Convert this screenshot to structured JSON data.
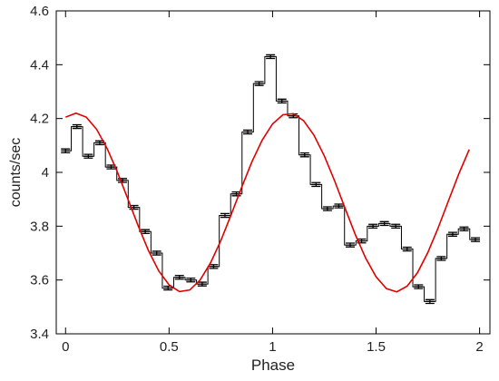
{
  "chart_data": {
    "type": "step",
    "xlabel": "Phase",
    "ylabel": "counts/sec",
    "xlim": [
      -0.045,
      2.05
    ],
    "ylim": [
      3.4,
      4.6
    ],
    "xticks": [
      0,
      0.5,
      1,
      1.5,
      2
    ],
    "yticks": [
      3.4,
      3.6,
      3.8,
      4,
      4.2,
      4.4,
      4.6
    ],
    "series": [
      {
        "type": "step",
        "color": "#000000",
        "x": [
          0,
          0.055,
          0.11,
          0.165,
          0.22,
          0.275,
          0.33,
          0.385,
          0.44,
          0.495,
          0.55,
          0.605,
          0.66,
          0.715,
          0.77,
          0.825,
          0.88,
          0.935,
          0.99,
          1.045,
          1.1,
          1.155,
          1.21,
          1.265,
          1.32,
          1.375,
          1.43,
          1.485,
          1.54,
          1.595,
          1.65,
          1.705,
          1.76,
          1.815,
          1.87,
          1.925,
          1.98
        ],
        "values": [
          4.08,
          4.17,
          4.06,
          4.11,
          4.02,
          3.97,
          3.87,
          3.78,
          3.7,
          3.57,
          3.61,
          3.6,
          3.585,
          3.65,
          3.84,
          3.92,
          4.15,
          4.33,
          4.43,
          4.265,
          4.21,
          4.065,
          3.955,
          3.865,
          3.875,
          3.73,
          3.745,
          3.8,
          3.81,
          3.8,
          3.715,
          3.575,
          3.52,
          3.68,
          3.77,
          3.79,
          3.75
        ],
        "errors": [
          0.007,
          0.007,
          0.007,
          0.007,
          0.007,
          0.007,
          0.007,
          0.007,
          0.007,
          0.007,
          0.007,
          0.007,
          0.007,
          0.007,
          0.007,
          0.007,
          0.007,
          0.007,
          0.007,
          0.007,
          0.007,
          0.007,
          0.007,
          0.007,
          0.007,
          0.007,
          0.007,
          0.007,
          0.007,
          0.007,
          0.007,
          0.007,
          0.007,
          0.007,
          0.007,
          0.007,
          0.007
        ]
      },
      {
        "type": "line",
        "color": "#e00000",
        "x": [
          0,
          0.05,
          0.1,
          0.15,
          0.2,
          0.25,
          0.3,
          0.35,
          0.4,
          0.45,
          0.5,
          0.55,
          0.6,
          0.65,
          0.7,
          0.75,
          0.8,
          0.85,
          0.9,
          0.95,
          1,
          1.05,
          1.1,
          1.15,
          1.2,
          1.25,
          1.3,
          1.35,
          1.4,
          1.45,
          1.5,
          1.55,
          1.6,
          1.65,
          1.7,
          1.75,
          1.8,
          1.85,
          1.9,
          1.95
        ],
        "values": [
          4.205,
          4.22,
          4.205,
          4.16,
          4.09,
          4.002,
          3.903,
          3.803,
          3.71,
          3.634,
          3.582,
          3.557,
          3.563,
          3.6,
          3.663,
          3.746,
          3.843,
          3.943,
          4.039,
          4.12,
          4.18,
          4.214,
          4.218,
          4.192,
          4.138,
          4.061,
          3.968,
          3.867,
          3.768,
          3.681,
          3.612,
          3.568,
          3.556,
          3.577,
          3.627,
          3.702,
          3.794,
          3.895,
          3.995,
          4.085
        ]
      }
    ]
  }
}
